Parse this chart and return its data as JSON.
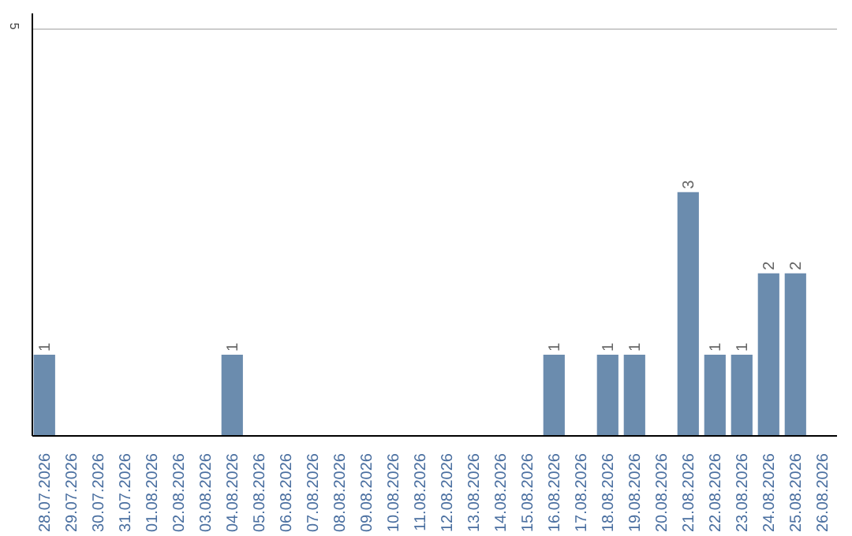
{
  "chart_data": {
    "type": "bar",
    "categories": [
      "28.07.2026",
      "29.07.2026",
      "30.07.2026",
      "31.07.2026",
      "01.08.2026",
      "02.08.2026",
      "03.08.2026",
      "04.08.2026",
      "05.08.2026",
      "06.08.2026",
      "07.08.2026",
      "08.08.2026",
      "09.08.2026",
      "10.08.2026",
      "11.08.2026",
      "12.08.2026",
      "13.08.2026",
      "14.08.2026",
      "15.08.2026",
      "16.08.2026",
      "17.08.2026",
      "18.08.2026",
      "19.08.2026",
      "20.08.2026",
      "21.08.2026",
      "22.08.2026",
      "23.08.2026",
      "24.08.2026",
      "25.08.2026",
      "26.08.2026"
    ],
    "values": [
      1,
      0,
      0,
      0,
      0,
      0,
      0,
      1,
      0,
      0,
      0,
      0,
      0,
      0,
      0,
      0,
      0,
      0,
      0,
      1,
      0,
      1,
      1,
      0,
      3,
      1,
      1,
      2,
      2,
      0
    ],
    "value_labels": [
      "1",
      null,
      null,
      null,
      null,
      null,
      null,
      "1",
      null,
      null,
      null,
      null,
      null,
      null,
      null,
      null,
      null,
      null,
      null,
      "1",
      null,
      "1",
      "1",
      null,
      "3",
      "1",
      "1",
      "2",
      "2",
      null
    ],
    "color": "#6b8cae",
    "ylim": [
      0,
      5.2
    ],
    "yticks": [
      5
    ],
    "grid": "y"
  }
}
